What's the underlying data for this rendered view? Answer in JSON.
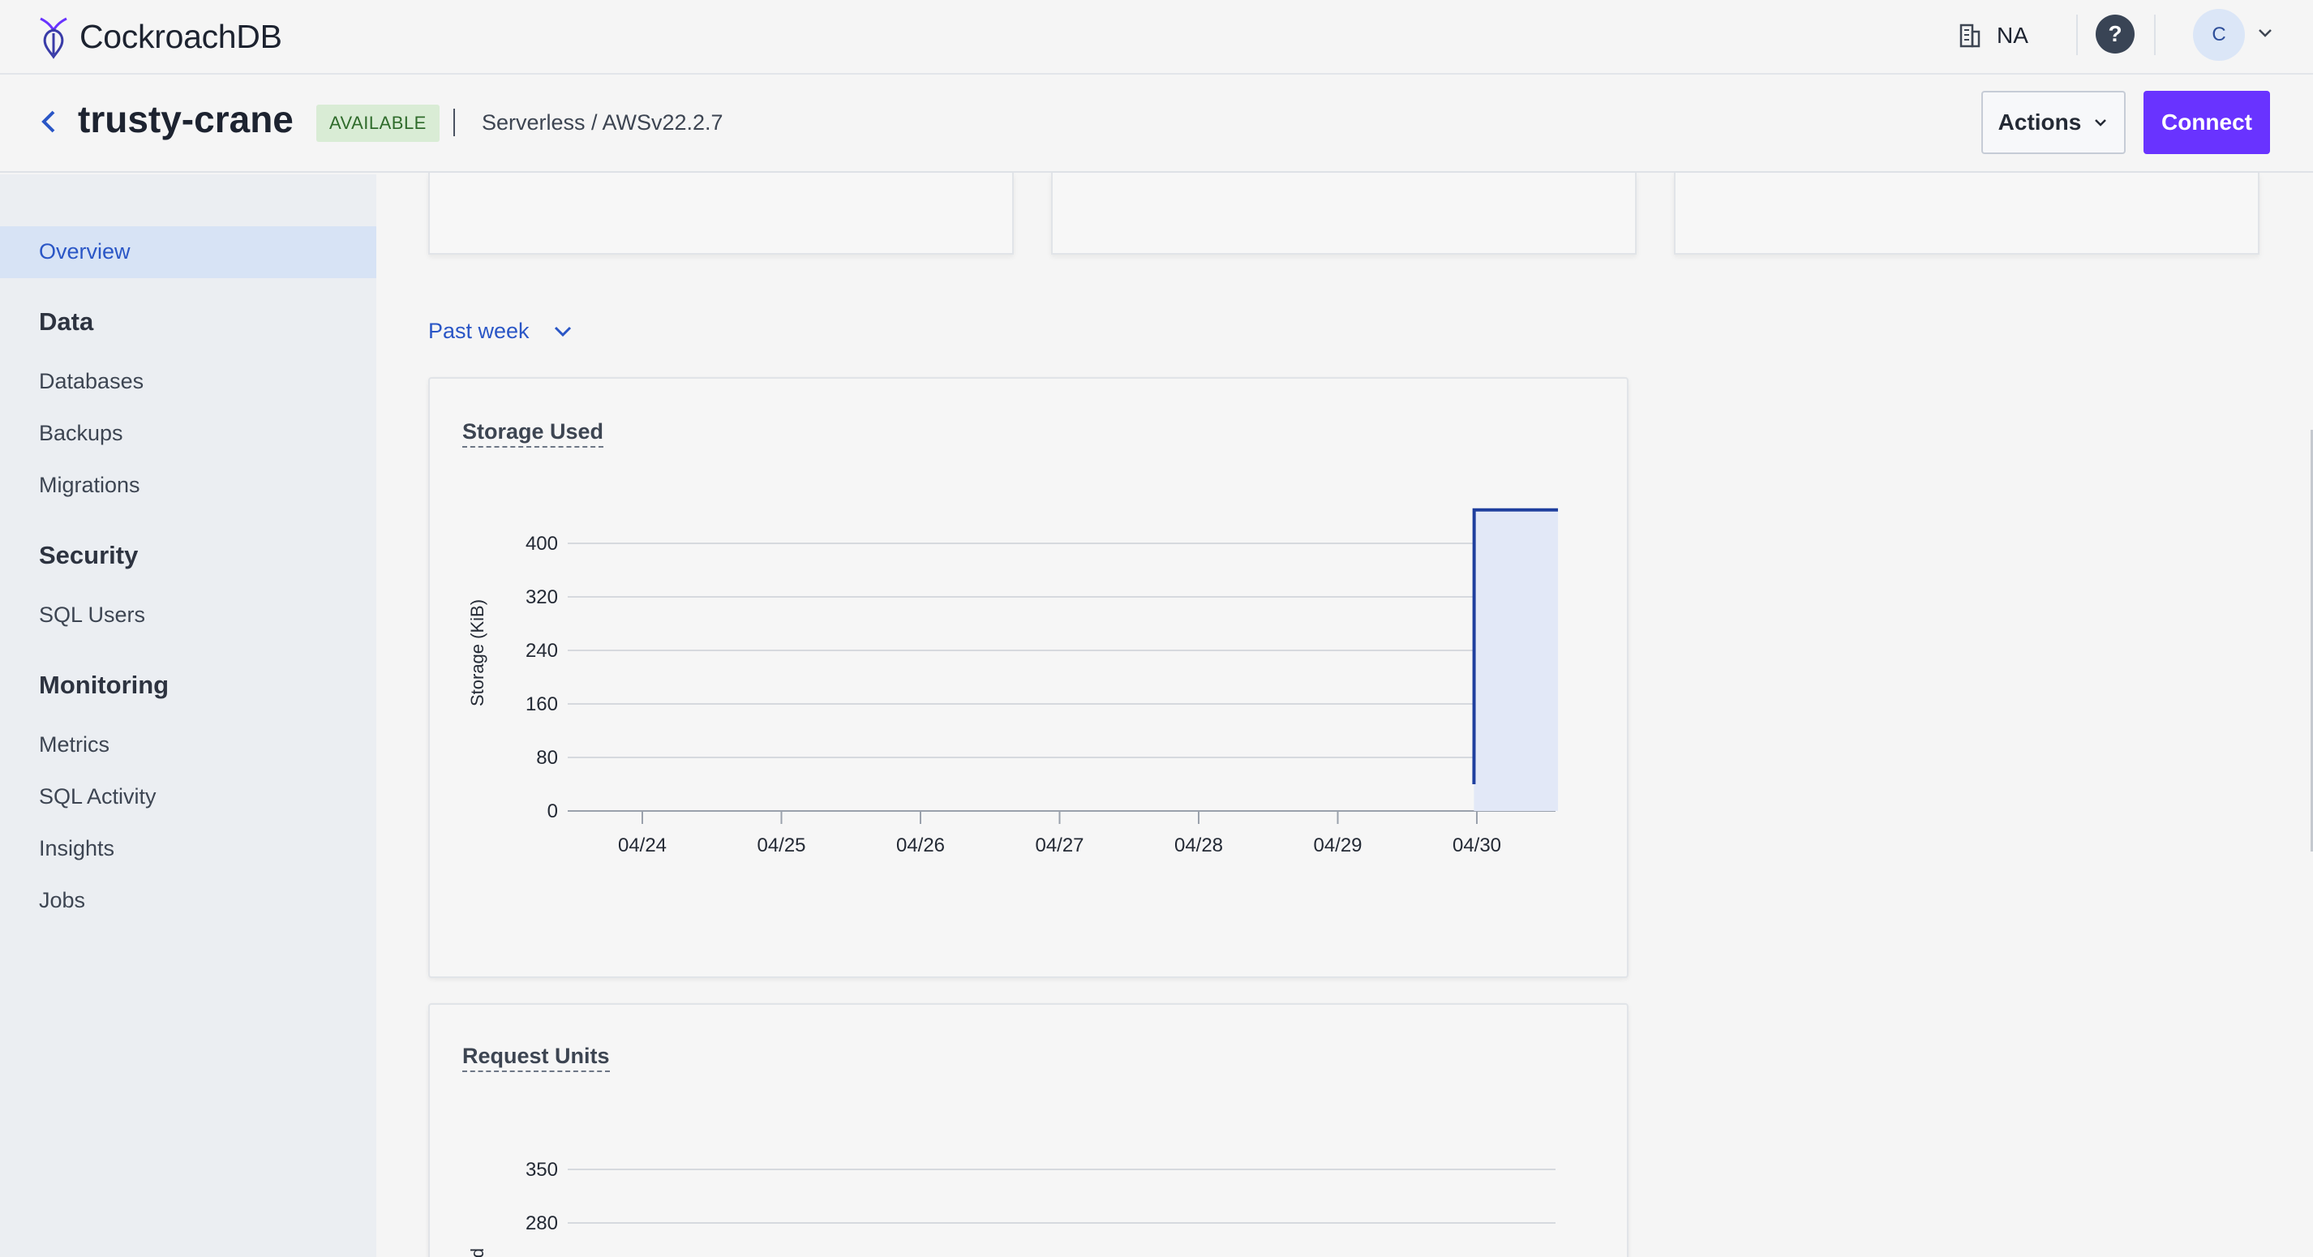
{
  "topbar": {
    "brand": "CockroachDB",
    "org_name": "NA",
    "help_label": "?",
    "avatar_initial": "C",
    "icons": [
      "cockroach-logo-icon",
      "building-icon",
      "help-icon",
      "chevron-down-icon"
    ]
  },
  "cluster": {
    "name": "trusty-crane",
    "status": "AVAILABLE",
    "plan": "Serverless / AWS",
    "version": "v22.2.7",
    "actions_label": "Actions",
    "connect_label": "Connect",
    "colors": {
      "status_bg": "#d9ecd5",
      "status_text": "#2f6b2b",
      "primary": "#6933ff"
    }
  },
  "sidebar": {
    "active": "Overview",
    "sections": [
      {
        "heading": "Data",
        "items": [
          "Databases",
          "Backups",
          "Migrations"
        ]
      },
      {
        "heading": "Security",
        "items": [
          "SQL Users"
        ]
      },
      {
        "heading": "Monitoring",
        "items": [
          "Metrics",
          "SQL Activity",
          "Insights",
          "Jobs"
        ]
      }
    ]
  },
  "main": {
    "time_range": "Past week"
  },
  "chart_data": [
    {
      "type": "area",
      "title": "Storage Used",
      "ylabel": "Storage (KiB)",
      "xlabel": "",
      "x_ticks": [
        "04/24",
        "04/25",
        "04/26",
        "04/27",
        "04/28",
        "04/29",
        "04/30"
      ],
      "y_ticks": [
        0,
        80,
        160,
        240,
        320,
        400
      ],
      "ylim": [
        0,
        450
      ],
      "series": [
        {
          "x": [
            "04/29 23:30",
            "04/29 23:31",
            "04/29 23:32",
            "04/30 14:00"
          ],
          "values": [
            40,
            115,
            450,
            450
          ]
        }
      ],
      "grid": true,
      "color": "#1f3f9e",
      "fill": "#e2e8f7"
    },
    {
      "type": "line",
      "title": "Request Units",
      "ylabel": "cond",
      "y_ticks": [
        280,
        350
      ],
      "grid": true
    }
  ]
}
